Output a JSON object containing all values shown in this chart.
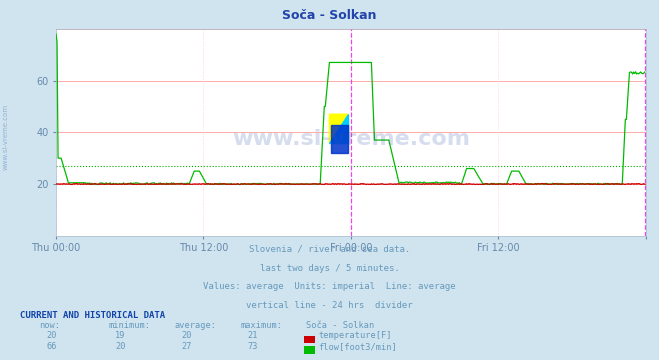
{
  "title": "Soča - Solkan",
  "bg_color": "#d0e4f0",
  "plot_bg_color": "#ffffff",
  "grid_h_color": "#ffaaaa",
  "grid_v_color": "#ffcccc",
  "ylabel_color": "#6688aa",
  "xlabel_color": "#6688aa",
  "title_color": "#2244aa",
  "watermark": "www.si-vreme.com",
  "watermark_color": "#3355aa",
  "watermark_alpha": 0.2,
  "subtitle_lines": [
    "Slovenia / river and sea data.",
    "last two days / 5 minutes.",
    "Values: average  Units: imperial  Line: average",
    "vertical line - 24 hrs  divider"
  ],
  "subtitle_color": "#6699bb",
  "footer_header": "CURRENT AND HISTORICAL DATA",
  "footer_header_color": "#1144aa",
  "footer_cols": [
    "now:",
    "minimum:",
    "average:",
    "maximum:",
    "Soča - Solkan"
  ],
  "footer_temp": [
    20,
    19,
    20,
    21
  ],
  "footer_flow": [
    66,
    20,
    27,
    73
  ],
  "temp_label": "temperature[F]",
  "flow_label": "flow[foot3/min]",
  "temp_color": "#cc0000",
  "flow_color": "#00bb00",
  "avg_temp_color": "#dd4444",
  "avg_flow_color": "#00aa00",
  "divider_color": "#ee44ee",
  "ylim": [
    0,
    80
  ],
  "yticks": [
    20,
    40,
    60
  ],
  "n_points": 576,
  "x_tick_positions": [
    0,
    144,
    288,
    432,
    576
  ],
  "x_tick_labels": [
    "Thu 00:00",
    "Thu 12:00",
    "Fri 00:00",
    "Fri 12:00",
    ""
  ],
  "temp_avg": 20,
  "flow_avg": 27,
  "divider_x": 288,
  "logo_colors": [
    "#ffff00",
    "#00ccff",
    "#0033cc"
  ],
  "sidebar_text": "www.si-vreme.com",
  "sidebar_color": "#3366aa"
}
